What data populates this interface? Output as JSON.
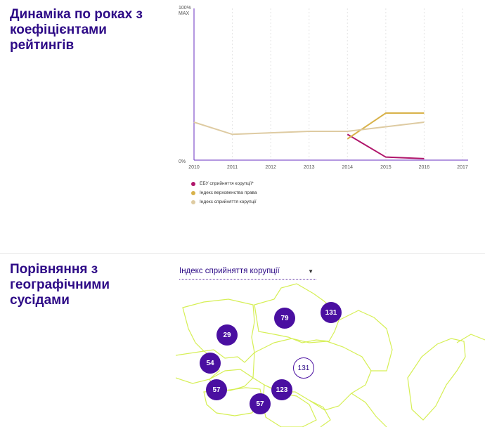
{
  "section1": {
    "title": "Динаміка по роках з коефіцієнтами рейтингів"
  },
  "section2": {
    "title": "Порівняння з географічними сусідами"
  },
  "dropdown": {
    "selected": "Індекс сприйняття корупції"
  },
  "colors": {
    "accent": "#2d0a86",
    "axis": "#6a2fc0",
    "series_1": "#b0166b",
    "series_2": "#d8b24a",
    "series_3": "#decba2",
    "marker": "#4a0fa1",
    "map_line": "#d6ef55"
  },
  "chart_data": {
    "type": "line",
    "y_top_labels": [
      "100%",
      "MAX"
    ],
    "y_bottom_label": "0%",
    "ylim": [
      0,
      100
    ],
    "x": [
      "2010",
      "2011",
      "2012",
      "2013",
      "2014",
      "2015",
      "2016",
      "2017"
    ],
    "series": [
      {
        "name": "ЕБУ сприйняття корупції*",
        "color": "#b0166b",
        "values": [
          null,
          null,
          null,
          null,
          17,
          2,
          1,
          null
        ]
      },
      {
        "name": "Індекс верховенства права",
        "color": "#d8b24a",
        "values": [
          null,
          null,
          null,
          null,
          14,
          31,
          31,
          null
        ]
      },
      {
        "name": "Індекс сприйняття корупції",
        "color": "#decba2",
        "values": [
          25,
          17,
          18,
          19,
          19,
          22,
          25,
          null
        ]
      }
    ],
    "grid": "vertical dashed",
    "legend": "bottom-left"
  },
  "map": {
    "markers": [
      {
        "value": "79",
        "style": "filled"
      },
      {
        "value": "131",
        "style": "filled"
      },
      {
        "value": "29",
        "style": "filled"
      },
      {
        "value": "54",
        "style": "filled"
      },
      {
        "value": "131",
        "style": "outline"
      },
      {
        "value": "57",
        "style": "filled"
      },
      {
        "value": "123",
        "style": "filled"
      },
      {
        "value": "57",
        "style": "filled"
      }
    ]
  }
}
